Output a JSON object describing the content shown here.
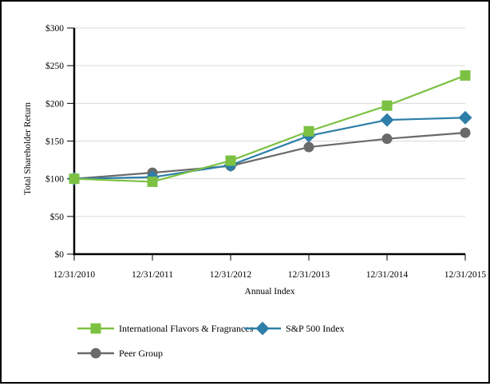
{
  "chart_data": {
    "type": "line",
    "title": "",
    "xlabel": "Annual Index",
    "ylabel": "Total Shareholder Return",
    "ylim": [
      0,
      300
    ],
    "grid": true,
    "legend_position": "bottom-left",
    "categories": [
      "12/31/2010",
      "12/31/2011",
      "12/31/2012",
      "12/31/2013",
      "12/31/2014",
      "12/31/2015"
    ],
    "y_ticks": [
      {
        "value": 0,
        "label": "$0"
      },
      {
        "value": 50,
        "label": "$50"
      },
      {
        "value": 100,
        "label": "$100"
      },
      {
        "value": 150,
        "label": "$150"
      },
      {
        "value": 200,
        "label": "$200"
      },
      {
        "value": 250,
        "label": "$250"
      },
      {
        "value": 300,
        "label": "$300"
      }
    ],
    "series": [
      {
        "id": "iff",
        "name": "International Flavors & Fragrances",
        "marker": "square",
        "color": "#7CC142",
        "values": [
          100,
          96,
          124,
          163,
          197,
          237
        ]
      },
      {
        "id": "sp500",
        "name": "S&P 500 Index",
        "marker": "diamond",
        "color": "#2D7EA8",
        "values": [
          100,
          102,
          118,
          157,
          178,
          181
        ]
      },
      {
        "id": "peer",
        "name": "Peer Group",
        "marker": "circle",
        "color": "#6A6A6A",
        "values": [
          100,
          108,
          117,
          142,
          153,
          161
        ]
      }
    ],
    "colors": {
      "gridline": "#D9D9D9",
      "axis": "#000000",
      "background": "#FFFFFF",
      "border": "#000000"
    }
  }
}
